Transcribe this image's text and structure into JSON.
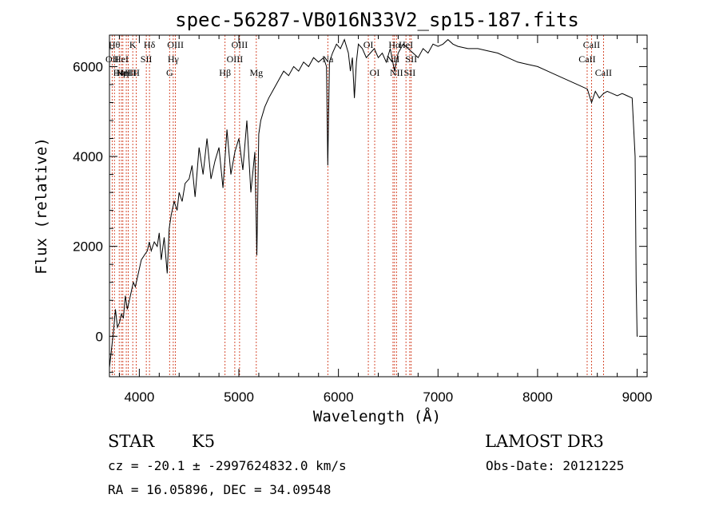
{
  "chart_data": {
    "type": "line",
    "title": "spec-56287-VB016N33V2_sp15-187.fits",
    "xlabel": "Wavelength (Å)",
    "ylabel": "Flux (relative)",
    "xlim": [
      3700,
      9100
    ],
    "ylim": [
      -900,
      6700
    ],
    "xticks": [
      4000,
      5000,
      6000,
      7000,
      8000,
      9000
    ],
    "yticks": [
      0,
      2000,
      4000,
      6000
    ],
    "grid": false,
    "series": [
      {
        "x": [
          3700,
          3720,
          3740,
          3760,
          3780,
          3800,
          3820,
          3840,
          3860,
          3880,
          3900,
          3920,
          3940,
          3960,
          3980,
          4000,
          4020,
          4050,
          4080,
          4100,
          4120,
          4150,
          4180,
          4200,
          4220,
          4250,
          4280,
          4300,
          4320,
          4350,
          4380,
          4400,
          4430,
          4460,
          4500,
          4530,
          4560,
          4600,
          4640,
          4680,
          4720,
          4760,
          4800,
          4840,
          4880,
          4920,
          4960,
          5000,
          5040,
          5080,
          5120,
          5160,
          5180,
          5200,
          5220,
          5260,
          5300,
          5350,
          5400,
          5450,
          5500,
          5550,
          5600,
          5650,
          5700,
          5750,
          5800,
          5850,
          5880,
          5893,
          5910,
          5940,
          5980,
          6020,
          6060,
          6100,
          6120,
          6140,
          6160,
          6180,
          6200,
          6240,
          6280,
          6320,
          6360,
          6400,
          6440,
          6480,
          6520,
          6563,
          6600,
          6650,
          6700,
          6750,
          6800,
          6850,
          6900,
          6950,
          7000,
          7050,
          7100,
          7150,
          7200,
          7300,
          7400,
          7500,
          7600,
          7700,
          7800,
          7900,
          8000,
          8100,
          8200,
          8300,
          8400,
          8500,
          8542,
          8580,
          8620,
          8662,
          8700,
          8750,
          8800,
          8850,
          8900,
          8950,
          8980,
          8990,
          9000,
          9005
        ],
        "values": [
          -700,
          -300,
          100,
          600,
          200,
          300,
          500,
          400,
          900,
          600,
          800,
          1000,
          1200,
          1100,
          1300,
          1500,
          1700,
          1800,
          1900,
          2100,
          1900,
          2100,
          2000,
          2300,
          1700,
          2200,
          1400,
          2400,
          2700,
          3000,
          2800,
          3200,
          3000,
          3400,
          3500,
          3800,
          3100,
          4200,
          3600,
          4400,
          3500,
          3900,
          4200,
          3300,
          4600,
          3600,
          4100,
          4400,
          3700,
          4800,
          3200,
          4100,
          1800,
          4500,
          4800,
          5100,
          5300,
          5500,
          5700,
          5900,
          5800,
          6000,
          5900,
          6100,
          6000,
          6200,
          6100,
          6200,
          6000,
          3800,
          6100,
          6300,
          6500,
          6400,
          6600,
          6300,
          5900,
          6200,
          5300,
          6100,
          6500,
          6400,
          6200,
          6300,
          6400,
          6200,
          6300,
          6100,
          6400,
          5900,
          6300,
          6500,
          6400,
          6300,
          6200,
          6400,
          6300,
          6500,
          6450,
          6500,
          6600,
          6500,
          6450,
          6400,
          6400,
          6350,
          6300,
          6200,
          6100,
          6050,
          6000,
          5900,
          5800,
          5700,
          5600,
          5500,
          5200,
          5450,
          5300,
          5400,
          5450,
          5400,
          5350,
          5400,
          5350,
          5300,
          4000,
          1200,
          0,
          0
        ]
      }
    ],
    "line_markers": [
      {
        "x": 3750,
        "label": "Hθ",
        "row": 0
      },
      {
        "x": 3727,
        "label": "OII",
        "row": 1
      },
      {
        "x": 3798,
        "label": "Hη",
        "row": 2
      },
      {
        "x": 3820,
        "label": "HeI",
        "row": 1
      },
      {
        "x": 3835,
        "label": "Hη",
        "row": 2
      },
      {
        "x": 3869,
        "label": "NeIII",
        "row": 2
      },
      {
        "x": 3889,
        "label": "H",
        "row": 2
      },
      {
        "x": 3934,
        "label": "K",
        "row": 0
      },
      {
        "x": 3969,
        "label": "H",
        "row": 2
      },
      {
        "x": 4070,
        "label": "SII",
        "row": 1
      },
      {
        "x": 4102,
        "label": "Hδ",
        "row": 0
      },
      {
        "x": 4304,
        "label": "G",
        "row": 2
      },
      {
        "x": 4341,
        "label": "Hγ",
        "row": 1
      },
      {
        "x": 4363,
        "label": "OIII",
        "row": 0
      },
      {
        "x": 4861,
        "label": "Hβ",
        "row": 2
      },
      {
        "x": 4959,
        "label": "OIII",
        "row": 1
      },
      {
        "x": 5007,
        "label": "OIII",
        "row": 0
      },
      {
        "x": 5175,
        "label": "Mg",
        "row": 2
      },
      {
        "x": 5893,
        "label": "Na",
        "row": 1
      },
      {
        "x": 6300,
        "label": "OI",
        "row": 0
      },
      {
        "x": 6364,
        "label": "OI",
        "row": 2
      },
      {
        "x": 6548,
        "label": "NII",
        "row": 1
      },
      {
        "x": 6563,
        "label": "Hα",
        "row": 0
      },
      {
        "x": 6583,
        "label": "NII",
        "row": 2
      },
      {
        "x": 6678,
        "label": "HeI",
        "row": 0
      },
      {
        "x": 6716,
        "label": "SII",
        "row": 2
      },
      {
        "x": 6731,
        "label": "SII",
        "row": 1
      },
      {
        "x": 8498,
        "label": "CaII",
        "row": 1
      },
      {
        "x": 8542,
        "label": "CaII",
        "row": 0
      },
      {
        "x": 8662,
        "label": "CaII",
        "row": 2
      }
    ]
  },
  "info": {
    "object_class": "STAR",
    "subclass": "K5",
    "survey": "LAMOST DR3",
    "redshift": "cz = -20.1 ± -2997624832.0 km/s",
    "obs_date": "Obs-Date: 20121225",
    "coordinates": "RA =  16.05896, DEC =  34.09548"
  }
}
